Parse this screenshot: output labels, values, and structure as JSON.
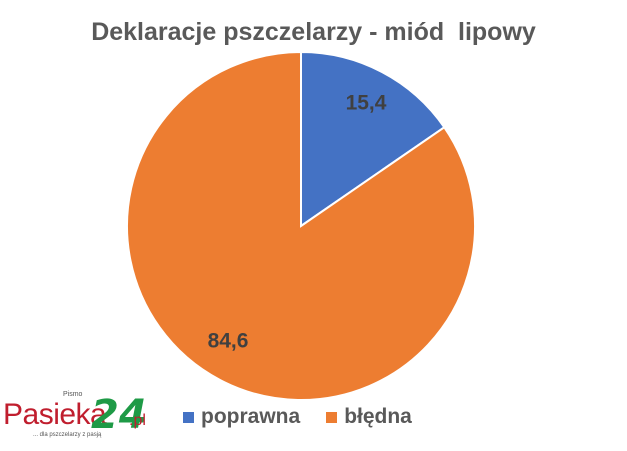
{
  "chart_data": {
    "type": "pie",
    "title": "Deklaracje pszczelarzy - miód  lipowy",
    "categories": [
      "poprawna",
      "błędna"
    ],
    "values": [
      15.4,
      84.6
    ],
    "labels": [
      "15,4",
      "84,6"
    ],
    "colors": [
      "#4472c4",
      "#ed7d31"
    ],
    "legend_position": "bottom"
  },
  "logo": {
    "top_text": "Pismo",
    "main_text": "Pasieka",
    "number_text": "24",
    "suffix_text": ".pl",
    "tagline": "... dla pszczelarzy z pasją"
  }
}
